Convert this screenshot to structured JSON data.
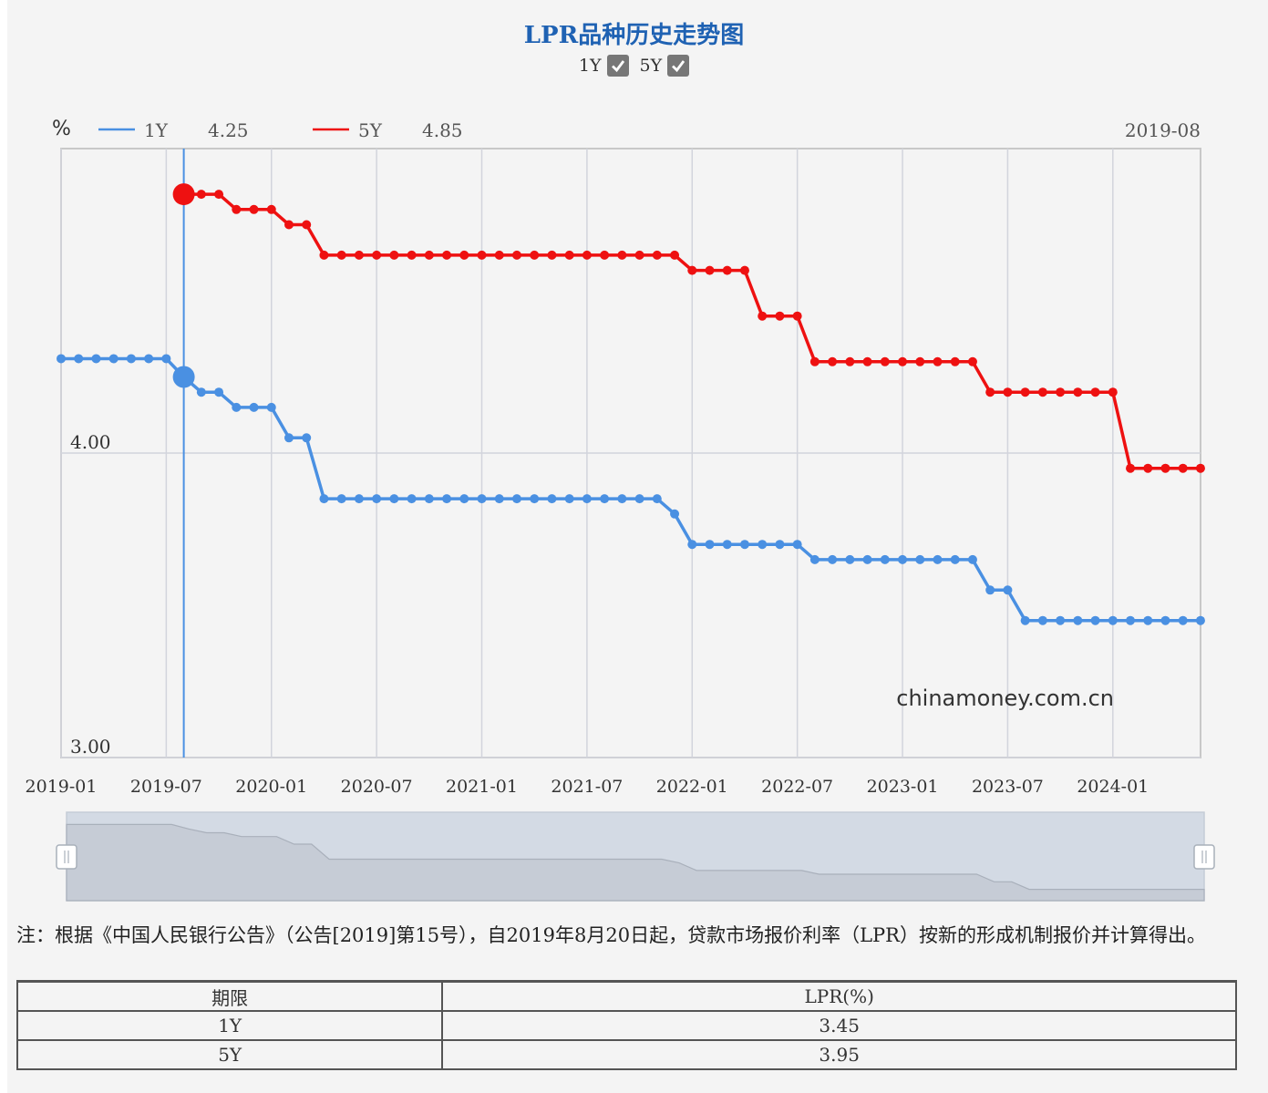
{
  "title": "LPR品种历史走势图",
  "toggles": [
    {
      "label": "1Y",
      "checked": true
    },
    {
      "label": "5Y",
      "checked": true
    }
  ],
  "chart_data": {
    "type": "line",
    "ylabel": "%",
    "ylim": [
      3.0,
      5.0
    ],
    "yticks": [
      {
        "value": 4.0,
        "label": "4.00"
      },
      {
        "value": 3.0,
        "label": "3.00"
      }
    ],
    "xticks": [
      "2019-01",
      "2019-07",
      "2020-01",
      "2020-07",
      "2021-01",
      "2021-07",
      "2022-01",
      "2022-07",
      "2023-01",
      "2023-07",
      "2024-01"
    ],
    "grid": true,
    "tooltip": {
      "date": "2019-08",
      "values": {
        "1Y": "4.25",
        "5Y": "4.85"
      }
    },
    "watermark": "chinamoney.com.cn",
    "series": [
      {
        "name": "1Y",
        "color": "#4a90e2",
        "points": [
          [
            "2019-01",
            4.31
          ],
          [
            "2019-02",
            4.31
          ],
          [
            "2019-03",
            4.31
          ],
          [
            "2019-04",
            4.31
          ],
          [
            "2019-05",
            4.31
          ],
          [
            "2019-06",
            4.31
          ],
          [
            "2019-07",
            4.31
          ],
          [
            "2019-08",
            4.25
          ],
          [
            "2019-09",
            4.2
          ],
          [
            "2019-10",
            4.2
          ],
          [
            "2019-11",
            4.15
          ],
          [
            "2019-12",
            4.15
          ],
          [
            "2020-01",
            4.15
          ],
          [
            "2020-02",
            4.05
          ],
          [
            "2020-03",
            4.05
          ],
          [
            "2020-04",
            3.85
          ],
          [
            "2020-05",
            3.85
          ],
          [
            "2020-06",
            3.85
          ],
          [
            "2020-07",
            3.85
          ],
          [
            "2020-08",
            3.85
          ],
          [
            "2020-09",
            3.85
          ],
          [
            "2020-10",
            3.85
          ],
          [
            "2020-11",
            3.85
          ],
          [
            "2020-12",
            3.85
          ],
          [
            "2021-01",
            3.85
          ],
          [
            "2021-02",
            3.85
          ],
          [
            "2021-03",
            3.85
          ],
          [
            "2021-04",
            3.85
          ],
          [
            "2021-05",
            3.85
          ],
          [
            "2021-06",
            3.85
          ],
          [
            "2021-07",
            3.85
          ],
          [
            "2021-08",
            3.85
          ],
          [
            "2021-09",
            3.85
          ],
          [
            "2021-10",
            3.85
          ],
          [
            "2021-11",
            3.85
          ],
          [
            "2021-12",
            3.8
          ],
          [
            "2022-01",
            3.7
          ],
          [
            "2022-02",
            3.7
          ],
          [
            "2022-03",
            3.7
          ],
          [
            "2022-04",
            3.7
          ],
          [
            "2022-05",
            3.7
          ],
          [
            "2022-06",
            3.7
          ],
          [
            "2022-07",
            3.7
          ],
          [
            "2022-08",
            3.65
          ],
          [
            "2022-09",
            3.65
          ],
          [
            "2022-10",
            3.65
          ],
          [
            "2022-11",
            3.65
          ],
          [
            "2022-12",
            3.65
          ],
          [
            "2023-01",
            3.65
          ],
          [
            "2023-02",
            3.65
          ],
          [
            "2023-03",
            3.65
          ],
          [
            "2023-04",
            3.65
          ],
          [
            "2023-05",
            3.65
          ],
          [
            "2023-06",
            3.55
          ],
          [
            "2023-07",
            3.55
          ],
          [
            "2023-08",
            3.45
          ],
          [
            "2023-09",
            3.45
          ],
          [
            "2023-10",
            3.45
          ],
          [
            "2023-11",
            3.45
          ],
          [
            "2023-12",
            3.45
          ],
          [
            "2024-01",
            3.45
          ],
          [
            "2024-02",
            3.45
          ],
          [
            "2024-03",
            3.45
          ],
          [
            "2024-04",
            3.45
          ],
          [
            "2024-05",
            3.45
          ],
          [
            "2024-06",
            3.45
          ]
        ]
      },
      {
        "name": "5Y",
        "color": "#ee1111",
        "points": [
          [
            "2019-08",
            4.85
          ],
          [
            "2019-09",
            4.85
          ],
          [
            "2019-10",
            4.85
          ],
          [
            "2019-11",
            4.8
          ],
          [
            "2019-12",
            4.8
          ],
          [
            "2020-01",
            4.8
          ],
          [
            "2020-02",
            4.75
          ],
          [
            "2020-03",
            4.75
          ],
          [
            "2020-04",
            4.65
          ],
          [
            "2020-05",
            4.65
          ],
          [
            "2020-06",
            4.65
          ],
          [
            "2020-07",
            4.65
          ],
          [
            "2020-08",
            4.65
          ],
          [
            "2020-09",
            4.65
          ],
          [
            "2020-10",
            4.65
          ],
          [
            "2020-11",
            4.65
          ],
          [
            "2020-12",
            4.65
          ],
          [
            "2021-01",
            4.65
          ],
          [
            "2021-02",
            4.65
          ],
          [
            "2021-03",
            4.65
          ],
          [
            "2021-04",
            4.65
          ],
          [
            "2021-05",
            4.65
          ],
          [
            "2021-06",
            4.65
          ],
          [
            "2021-07",
            4.65
          ],
          [
            "2021-08",
            4.65
          ],
          [
            "2021-09",
            4.65
          ],
          [
            "2021-10",
            4.65
          ],
          [
            "2021-11",
            4.65
          ],
          [
            "2021-12",
            4.65
          ],
          [
            "2022-01",
            4.6
          ],
          [
            "2022-02",
            4.6
          ],
          [
            "2022-03",
            4.6
          ],
          [
            "2022-04",
            4.6
          ],
          [
            "2022-05",
            4.45
          ],
          [
            "2022-06",
            4.45
          ],
          [
            "2022-07",
            4.45
          ],
          [
            "2022-08",
            4.3
          ],
          [
            "2022-09",
            4.3
          ],
          [
            "2022-10",
            4.3
          ],
          [
            "2022-11",
            4.3
          ],
          [
            "2022-12",
            4.3
          ],
          [
            "2023-01",
            4.3
          ],
          [
            "2023-02",
            4.3
          ],
          [
            "2023-03",
            4.3
          ],
          [
            "2023-04",
            4.3
          ],
          [
            "2023-05",
            4.3
          ],
          [
            "2023-06",
            4.2
          ],
          [
            "2023-07",
            4.2
          ],
          [
            "2023-08",
            4.2
          ],
          [
            "2023-09",
            4.2
          ],
          [
            "2023-10",
            4.2
          ],
          [
            "2023-11",
            4.2
          ],
          [
            "2023-12",
            4.2
          ],
          [
            "2024-01",
            4.2
          ],
          [
            "2024-02",
            3.95
          ],
          [
            "2024-03",
            3.95
          ],
          [
            "2024-04",
            3.95
          ],
          [
            "2024-05",
            3.95
          ],
          [
            "2024-06",
            3.95
          ]
        ]
      }
    ]
  },
  "note": "注：根据《中国人民银行公告》（公告[2019]第15号），自2019年8月20日起，贷款市场报价利率（LPR）按新的形成机制报价并计算得出。",
  "table": {
    "headers": [
      "期限",
      "LPR(%)"
    ],
    "rows": [
      [
        "1Y",
        "3.45"
      ],
      [
        "5Y",
        "3.95"
      ]
    ]
  }
}
